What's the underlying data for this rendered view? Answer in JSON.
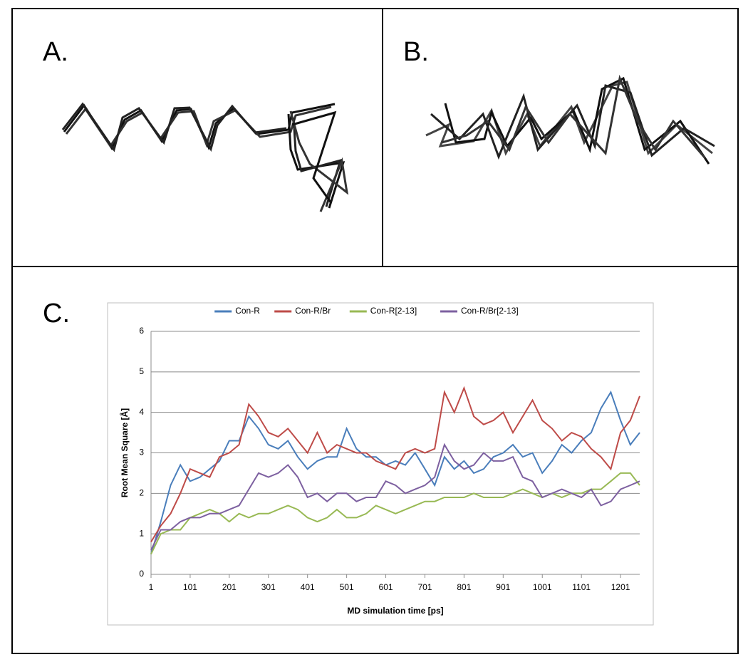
{
  "panel_labels": [
    "A.",
    "B.",
    "C."
  ],
  "chart_data": {
    "type": "line",
    "x_label": "MD simulation time [ps]",
    "y_label": "Root Mean Square [Å]",
    "x": [
      1,
      26,
      51,
      76,
      101,
      126,
      151,
      176,
      201,
      226,
      251,
      276,
      301,
      326,
      351,
      376,
      401,
      426,
      451,
      476,
      501,
      526,
      551,
      576,
      601,
      626,
      651,
      676,
      701,
      726,
      751,
      776,
      801,
      826,
      851,
      876,
      901,
      926,
      951,
      976,
      1001,
      1026,
      1051,
      1076,
      1101,
      1126,
      1151,
      1176,
      1201,
      1226,
      1250
    ],
    "xlim": [
      1,
      1250
    ],
    "xticks": [
      1,
      101,
      201,
      301,
      401,
      501,
      601,
      701,
      801,
      901,
      1001,
      1101,
      1201
    ],
    "ylim": [
      0,
      6
    ],
    "yticks": [
      0,
      1,
      2,
      3,
      4,
      5,
      6
    ],
    "grid": true,
    "legend": "top",
    "series": [
      {
        "name": "Con-R",
        "color": "#4a7ebb",
        "values": [
          0.5,
          1.3,
          2.2,
          2.7,
          2.3,
          2.4,
          2.6,
          2.8,
          3.3,
          3.3,
          3.9,
          3.6,
          3.2,
          3.1,
          3.3,
          2.9,
          2.6,
          2.8,
          2.9,
          2.9,
          3.6,
          3.1,
          2.9,
          2.9,
          2.7,
          2.8,
          2.7,
          3.0,
          2.6,
          2.2,
          2.9,
          2.6,
          2.8,
          2.5,
          2.6,
          2.9,
          3.0,
          3.2,
          2.9,
          3.0,
          2.5,
          2.8,
          3.2,
          3.0,
          3.3,
          3.5,
          4.1,
          4.5,
          3.8,
          3.2,
          3.5
        ]
      },
      {
        "name": "Con-R/Br",
        "color": "#be4b48",
        "values": [
          0.8,
          1.2,
          1.5,
          2.0,
          2.6,
          2.5,
          2.4,
          2.9,
          3.0,
          3.2,
          4.2,
          3.9,
          3.5,
          3.4,
          3.6,
          3.3,
          3.0,
          3.5,
          3.0,
          3.2,
          3.1,
          3.0,
          3.0,
          2.8,
          2.7,
          2.6,
          3.0,
          3.1,
          3.0,
          3.1,
          4.5,
          4.0,
          4.6,
          3.9,
          3.7,
          3.8,
          4.0,
          3.5,
          3.9,
          4.3,
          3.8,
          3.6,
          3.3,
          3.5,
          3.4,
          3.1,
          2.9,
          2.6,
          3.5,
          3.8,
          4.4
        ]
      },
      {
        "name": "Con-R[2-13]",
        "color": "#98b954",
        "values": [
          0.5,
          1.0,
          1.1,
          1.1,
          1.4,
          1.5,
          1.6,
          1.5,
          1.3,
          1.5,
          1.4,
          1.5,
          1.5,
          1.6,
          1.7,
          1.6,
          1.4,
          1.3,
          1.4,
          1.6,
          1.4,
          1.4,
          1.5,
          1.7,
          1.6,
          1.5,
          1.6,
          1.7,
          1.8,
          1.8,
          1.9,
          1.9,
          1.9,
          2.0,
          1.9,
          1.9,
          1.9,
          2.0,
          2.1,
          2.0,
          1.9,
          2.0,
          1.9,
          2.0,
          2.0,
          2.1,
          2.1,
          2.3,
          2.5,
          2.5,
          2.2
        ]
      },
      {
        "name": "Con-R/Br[2-13]",
        "color": "#7d60a0",
        "values": [
          0.6,
          1.1,
          1.1,
          1.3,
          1.4,
          1.4,
          1.5,
          1.5,
          1.6,
          1.7,
          2.1,
          2.5,
          2.4,
          2.5,
          2.7,
          2.4,
          1.9,
          2.0,
          1.8,
          2.0,
          2.0,
          1.8,
          1.9,
          1.9,
          2.3,
          2.2,
          2.0,
          2.1,
          2.2,
          2.4,
          3.2,
          2.8,
          2.6,
          2.7,
          3.0,
          2.8,
          2.8,
          2.9,
          2.4,
          2.3,
          1.9,
          2.0,
          2.1,
          2.0,
          1.9,
          2.1,
          1.7,
          1.8,
          2.1,
          2.2,
          2.3
        ]
      }
    ]
  }
}
